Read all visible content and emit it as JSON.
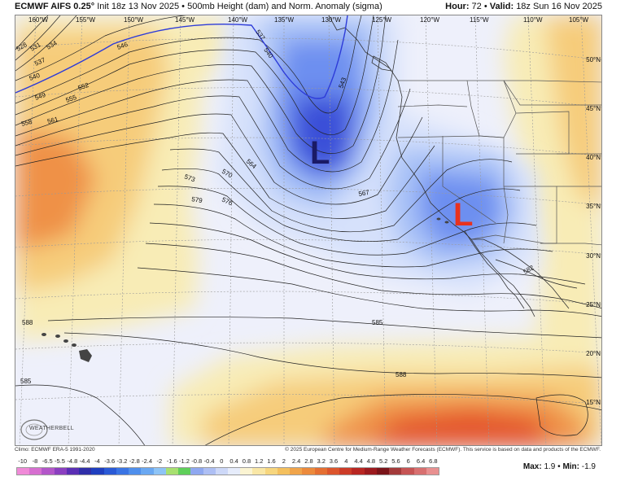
{
  "header": {
    "model": "ECMWF AIFS 0.25°",
    "init": "Init 18z 13 Nov 2025",
    "bullet": "•",
    "product": "500mb Height (dam) and Norm. Anomaly (sigma)",
    "hour_label": "Hour:",
    "hour_value": "72",
    "valid_label": "Valid:",
    "valid_value": "18z Sun 16 Nov 2025"
  },
  "map": {
    "lon_labels": [
      "160°W",
      "155°W",
      "150°W",
      "145°W",
      "140°W",
      "135°W",
      "130°W",
      "125°W",
      "120°W",
      "115°W",
      "110°W",
      "105°W"
    ],
    "lat_labels": [
      "50°N",
      "45°N",
      "40°N",
      "35°N",
      "30°N",
      "25°N",
      "20°N",
      "15°N"
    ],
    "contour_labels": [
      "528",
      "531",
      "534",
      "537",
      "540",
      "543",
      "546",
      "549",
      "552",
      "555",
      "558",
      "561",
      "564",
      "567",
      "570",
      "573",
      "576",
      "579",
      "582",
      "585",
      "585",
      "588",
      "588",
      "588",
      "537",
      "540"
    ],
    "lows": [
      {
        "label": "L",
        "color": "#1a1a66"
      },
      {
        "label": "L",
        "color": "#e8321e"
      }
    ],
    "colors": {
      "ocean_base": "#eef0fb",
      "strong_neg": "#3a4fd8",
      "mid_neg": "#6d8ff0",
      "weak_neg": "#a9c2f7",
      "faint_neg": "#d6e1fb",
      "weak_pos": "#f8ecb6",
      "mid_pos": "#f6cc7a",
      "strong_pos": "#ef9146",
      "very_pos": "#e4532c"
    }
  },
  "footer": {
    "climo": "Climo: ECMWF ERA-5 1991-2020",
    "copyright": "© 2025 European Centre for Medium-Range Weather Forecasts (ECMWF). This service is based on data and products of the ECMWF."
  },
  "brand": {
    "text": "WEATHERBELL"
  },
  "legend": {
    "labels": [
      "-10",
      "-8",
      "-6.5",
      "-5.5",
      "-4.8",
      "-4.4",
      "-4",
      "-3.6",
      "-3.2",
      "-2.8",
      "-2.4",
      "-2",
      "-1.6",
      "-1.2",
      "-0.8",
      "-0.4",
      "0",
      "0.4",
      "0.8",
      "1.2",
      "1.6",
      "2",
      "2.4",
      "2.8",
      "3.2",
      "3.6",
      "4",
      "4.4",
      "4.8",
      "5.2",
      "5.6",
      "6",
      "6.4",
      "6.8"
    ],
    "colors": [
      "#f08ad8",
      "#d66fd0",
      "#b356c9",
      "#8b3fc0",
      "#5a2eb4",
      "#2f2ea8",
      "#1f3fbf",
      "#2a5ad6",
      "#3a74e4",
      "#4f8fec",
      "#6aa8f2",
      "#8ec4f6",
      "#a8e070",
      "#5fcf5a",
      "#8fa8f0",
      "#aebff4",
      "#cdd8f8",
      "#e6ecfb",
      "#fbf4d2",
      "#f9e7a6",
      "#f7d67e",
      "#f4c05e",
      "#f0a44a",
      "#ec8a3c",
      "#e56f32",
      "#dc552c",
      "#cc3b27",
      "#b82622",
      "#9c1a1e",
      "#7a1419",
      "#a33a3a",
      "#c65454",
      "#d87070",
      "#e89090"
    ]
  },
  "stats": {
    "max_label": "Max:",
    "max_value": "1.9",
    "sep": "•",
    "min_label": "Min:",
    "min_value": "-1.9"
  }
}
